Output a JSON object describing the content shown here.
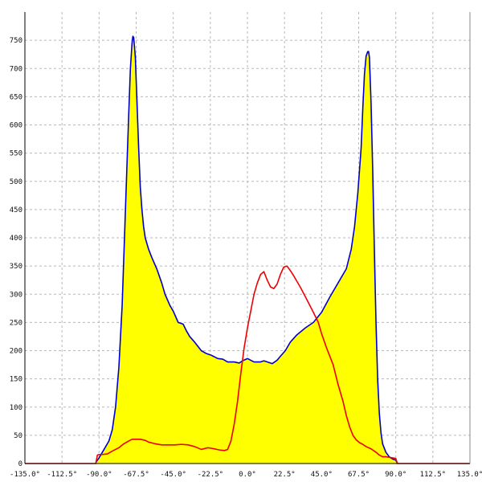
{
  "chart_data": {
    "type": "area",
    "title": "",
    "xlabel": "",
    "ylabel": "",
    "xlim": [
      -135,
      135
    ],
    "ylim": [
      0,
      800
    ],
    "grid": true,
    "x_ticks": [
      -135,
      -112.5,
      -90,
      -67.5,
      -45,
      -22.5,
      0,
      22.5,
      45,
      67.5,
      90,
      112.5,
      135
    ],
    "x_tick_labels": [
      "-135.0°",
      "-112.5°",
      "-90.0°",
      "-67.5°",
      "-45.0°",
      "-22.5°",
      "0.0°",
      "22.5°",
      "45.0°",
      "67.5°",
      "90.0°",
      "112.5°",
      "135.0°"
    ],
    "y_ticks": [
      0,
      50,
      100,
      150,
      200,
      250,
      300,
      350,
      400,
      450,
      500,
      550,
      600,
      650,
      700,
      750
    ],
    "y_tick_labels": [
      "0",
      "50",
      "100",
      "150",
      "200",
      "250",
      "300",
      "350",
      "400",
      "450",
      "500",
      "550",
      "600",
      "650",
      "700",
      "750"
    ],
    "series": [
      {
        "color": "#0000cc",
        "fill": "#ffff00",
        "x": [
          -92,
          -90,
          -88,
          -86,
          -84,
          -82,
          -80,
          -78,
          -76,
          -74,
          -72,
          -71,
          -70,
          -69.5,
          -69,
          -68,
          -67,
          -66,
          -65,
          -64,
          -63,
          -62,
          -60,
          -58,
          -55,
          -52,
          -50,
          -47,
          -45,
          -42,
          -39,
          -37,
          -35,
          -32,
          -28,
          -25,
          -22,
          -18,
          -15,
          -12,
          -8,
          -5,
          -3,
          0,
          2,
          4,
          6,
          8,
          10,
          12,
          15,
          18,
          20,
          23,
          26,
          30,
          35,
          40,
          45,
          50,
          55,
          60,
          63,
          65,
          67,
          69,
          70,
          71,
          72,
          73,
          73.5,
          74,
          75,
          76,
          77,
          78,
          79,
          80,
          81,
          82,
          84,
          86,
          88,
          90,
          91
        ],
        "values": [
          2,
          10,
          20,
          30,
          40,
          60,
          100,
          170,
          280,
          450,
          620,
          700,
          745,
          757,
          755,
          720,
          640,
          560,
          490,
          450,
          420,
          400,
          380,
          365,
          345,
          320,
          300,
          280,
          270,
          250,
          247,
          235,
          225,
          215,
          200,
          195,
          192,
          186,
          185,
          180,
          180,
          178,
          182,
          186,
          183,
          180,
          180,
          180,
          182,
          180,
          177,
          183,
          190,
          200,
          215,
          228,
          240,
          250,
          268,
          295,
          320,
          345,
          380,
          420,
          480,
          560,
          630,
          690,
          722,
          730,
          730,
          720,
          640,
          520,
          380,
          250,
          150,
          90,
          55,
          35,
          20,
          12,
          8,
          6,
          0
        ]
      },
      {
        "color": "#ee0000",
        "x": [
          -135,
          -92,
          -91,
          -90,
          -88,
          -85,
          -82,
          -78,
          -75,
          -72,
          -70,
          -68,
          -65,
          -62,
          -60,
          -56,
          -52,
          -48,
          -44,
          -40,
          -36,
          -32,
          -28,
          -24,
          -20,
          -17,
          -14,
          -12,
          -10,
          -8,
          -6,
          -4,
          -2,
          0,
          2,
          4,
          6,
          8,
          10,
          12,
          14,
          16,
          18,
          20,
          22,
          24,
          26,
          28,
          30,
          32,
          34,
          37,
          40,
          43,
          45,
          48,
          52,
          55,
          58,
          60,
          62,
          64,
          66,
          68,
          70,
          72,
          75,
          78,
          80,
          82,
          84,
          86,
          88,
          90,
          91,
          135
        ],
        "values": [
          0,
          0,
          15,
          16,
          16,
          17,
          22,
          28,
          35,
          40,
          43,
          43,
          43,
          41,
          38,
          35,
          33,
          33,
          33,
          34,
          33,
          30,
          25,
          28,
          26,
          24,
          23,
          25,
          40,
          70,
          110,
          160,
          205,
          240,
          270,
          300,
          320,
          335,
          340,
          325,
          313,
          310,
          318,
          335,
          348,
          350,
          342,
          333,
          323,
          313,
          302,
          285,
          268,
          250,
          230,
          205,
          175,
          140,
          110,
          85,
          65,
          50,
          42,
          37,
          34,
          30,
          26,
          20,
          15,
          12,
          12,
          11,
          10,
          9,
          0,
          0
        ]
      }
    ]
  }
}
